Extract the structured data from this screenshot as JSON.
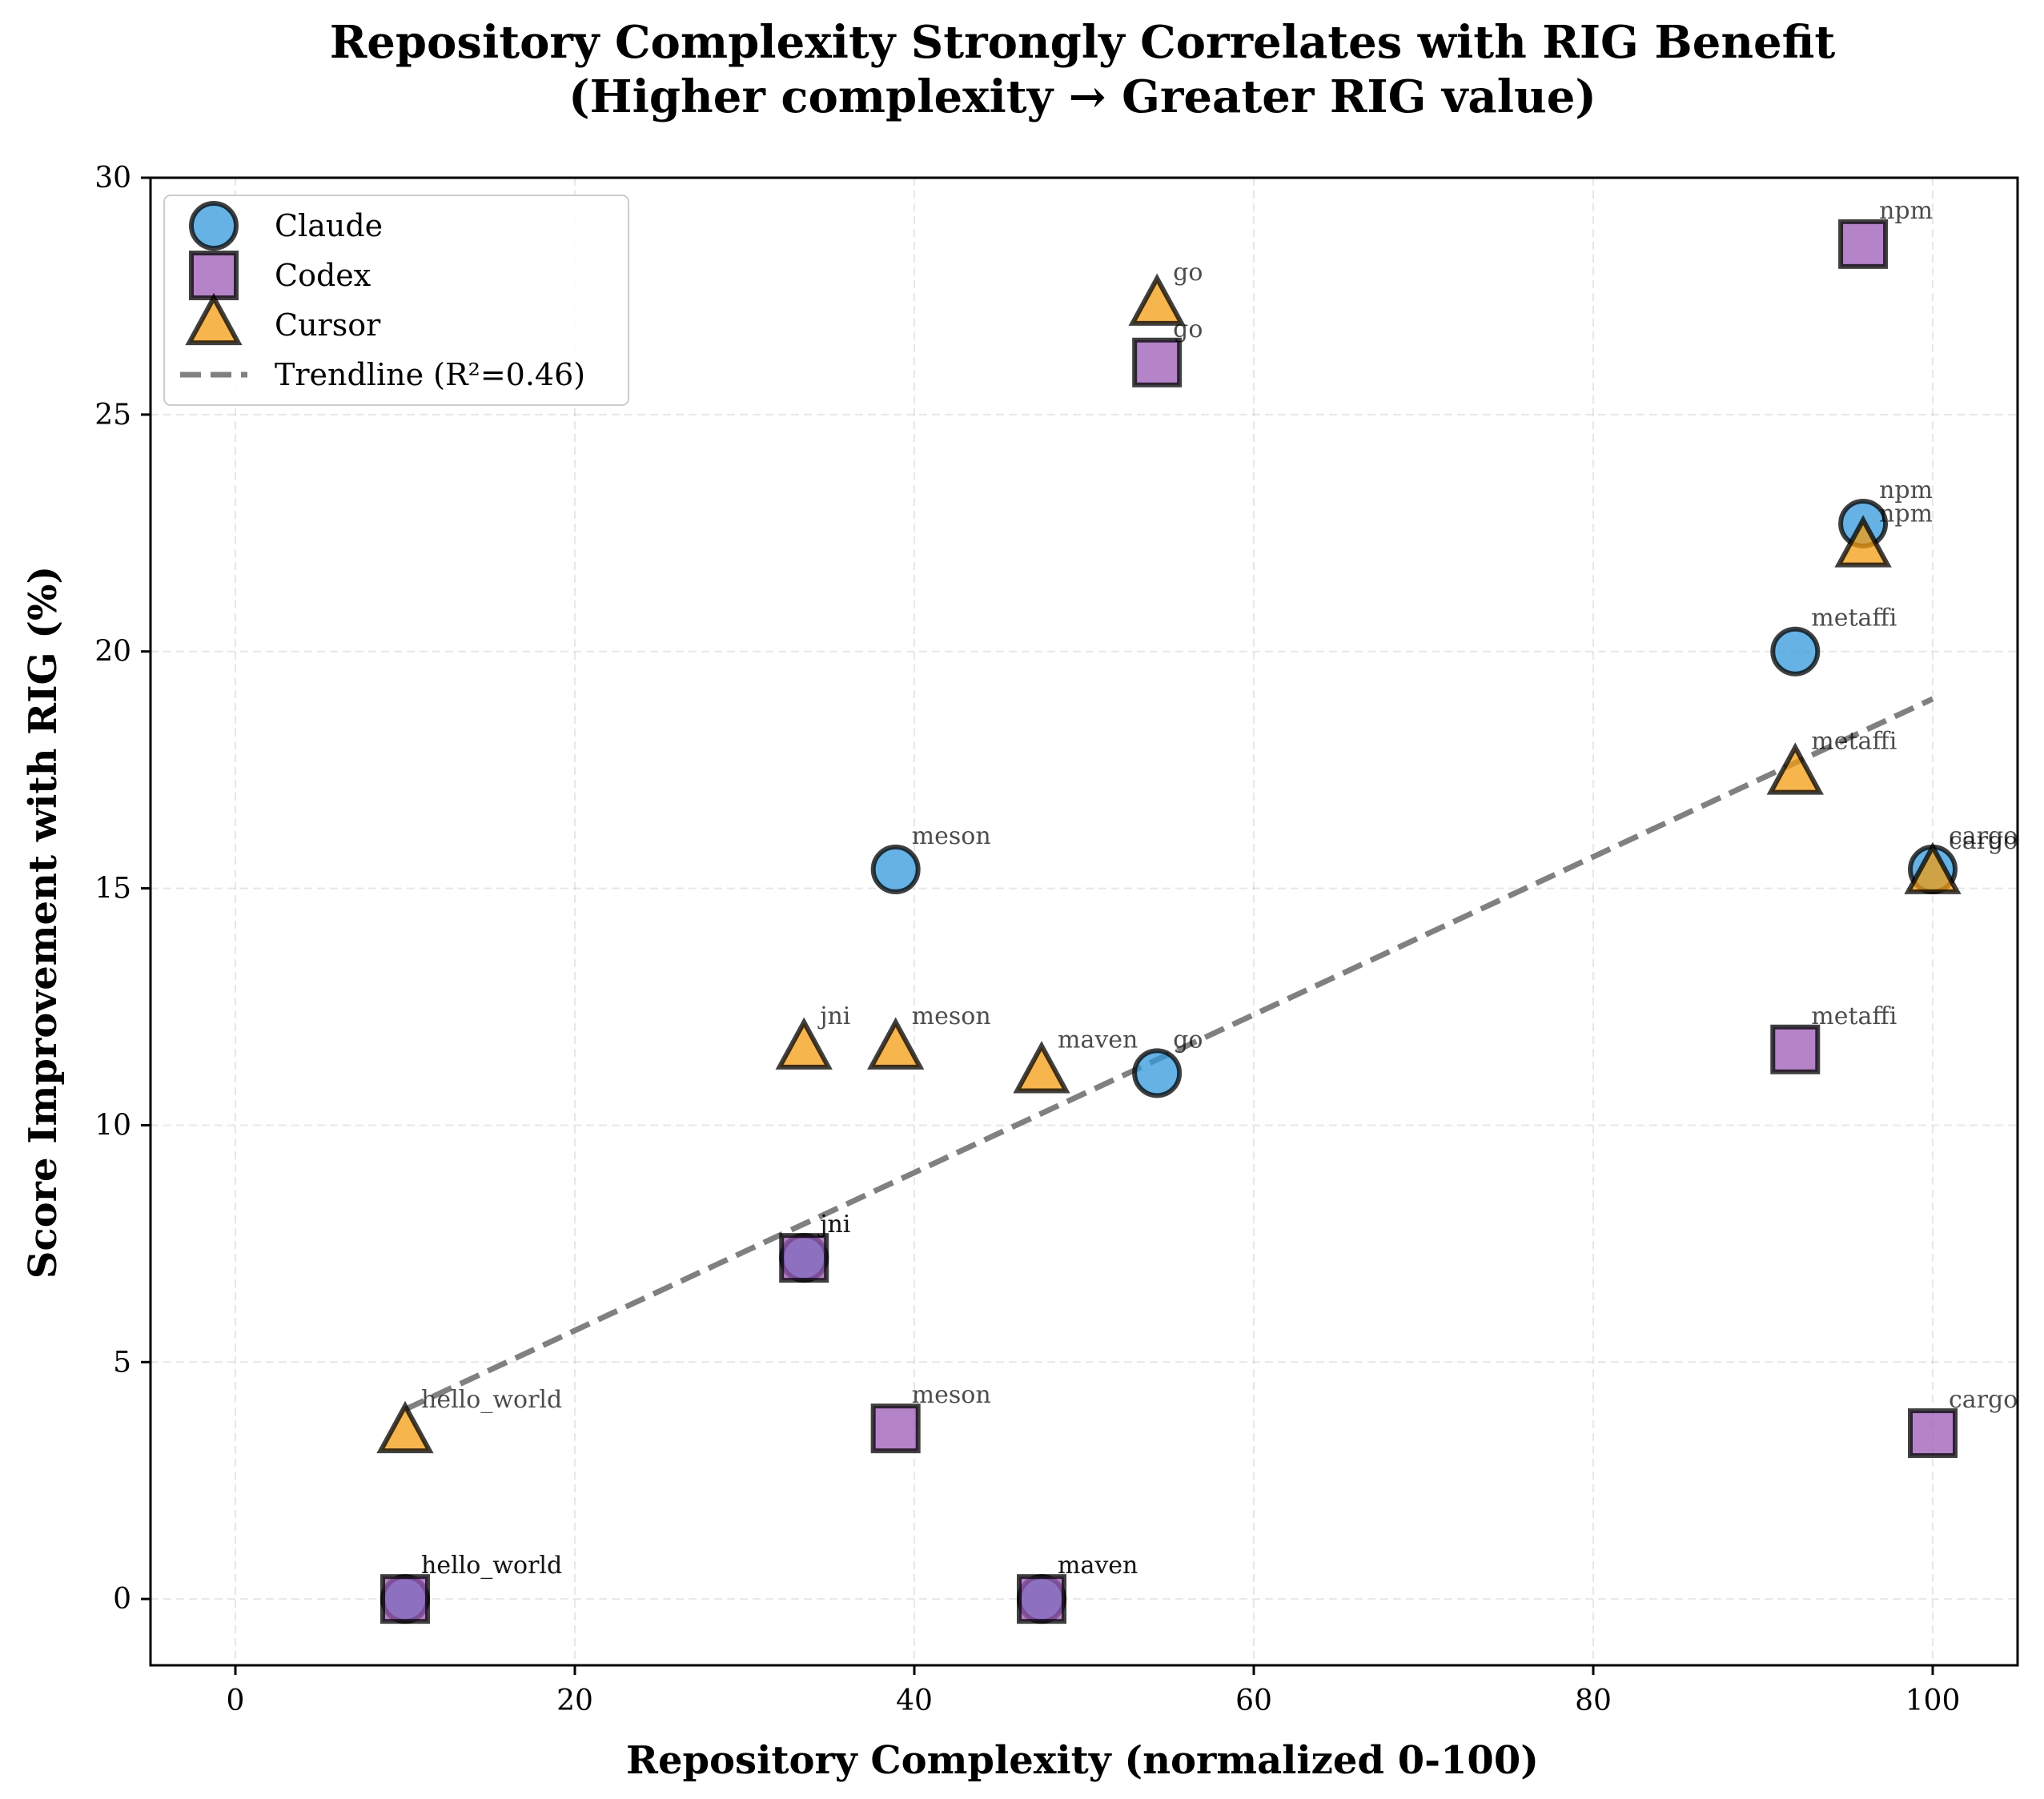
{
  "chart_data": {
    "type": "scatter",
    "title": "Repository Complexity Strongly Correlates with RIG Benefit",
    "subtitle": "(Higher complexity → Greater RIG value)",
    "xlabel": "Repository Complexity (normalized 0-100)",
    "ylabel": "Score Improvement with RIG (%)",
    "xlim": [
      -5,
      105
    ],
    "ylim": [
      -1.4,
      30
    ],
    "xticks": [
      0,
      20,
      40,
      60,
      80,
      100
    ],
    "yticks": [
      0,
      5,
      10,
      15,
      20,
      25,
      30
    ],
    "grid": true,
    "legend_position": "top-left",
    "series": [
      {
        "name": "Claude",
        "marker": "circle",
        "color": "#3498db",
        "points": [
          {
            "x": 10,
            "y": 0,
            "label": "hello_world"
          },
          {
            "x": 33.5,
            "y": 7.2,
            "label": "jni"
          },
          {
            "x": 38.9,
            "y": 15.4,
            "label": "meson"
          },
          {
            "x": 47.5,
            "y": 0,
            "label": "maven"
          },
          {
            "x": 54.3,
            "y": 11.1,
            "label": "go"
          },
          {
            "x": 91.9,
            "y": 20.0,
            "label": "metaffi"
          },
          {
            "x": 95.9,
            "y": 22.7,
            "label": "npm"
          },
          {
            "x": 100,
            "y": 15.4,
            "label": "cargo"
          }
        ]
      },
      {
        "name": "Codex",
        "marker": "square",
        "color": "#9b59b6",
        "points": [
          {
            "x": 10,
            "y": 0,
            "label": "hello_world"
          },
          {
            "x": 33.5,
            "y": 7.2,
            "label": "jni"
          },
          {
            "x": 38.9,
            "y": 3.6,
            "label": "meson"
          },
          {
            "x": 47.5,
            "y": 0,
            "label": "maven"
          },
          {
            "x": 54.3,
            "y": 26.1,
            "label": "go"
          },
          {
            "x": 91.9,
            "y": 11.6,
            "label": "metaffi"
          },
          {
            "x": 95.9,
            "y": 28.6,
            "label": "npm"
          },
          {
            "x": 100,
            "y": 3.5,
            "label": "cargo"
          }
        ]
      },
      {
        "name": "Cursor",
        "marker": "triangle",
        "color": "#f39c12",
        "points": [
          {
            "x": 10,
            "y": 3.5,
            "label": "hello_world"
          },
          {
            "x": 33.5,
            "y": 11.6,
            "label": "jni"
          },
          {
            "x": 38.9,
            "y": 11.6,
            "label": "meson"
          },
          {
            "x": 47.5,
            "y": 11.1,
            "label": "maven"
          },
          {
            "x": 54.3,
            "y": 27.3,
            "label": "go"
          },
          {
            "x": 91.9,
            "y": 17.4,
            "label": "metaffi"
          },
          {
            "x": 95.9,
            "y": 22.2,
            "label": "npm"
          },
          {
            "x": 100,
            "y": 15.3,
            "label": "cargo"
          }
        ]
      }
    ],
    "trendline": {
      "label": "Trendline (R²=0.46)",
      "x": [
        10,
        100
      ],
      "y": [
        4.0,
        19.0
      ],
      "color": "#808080"
    }
  }
}
